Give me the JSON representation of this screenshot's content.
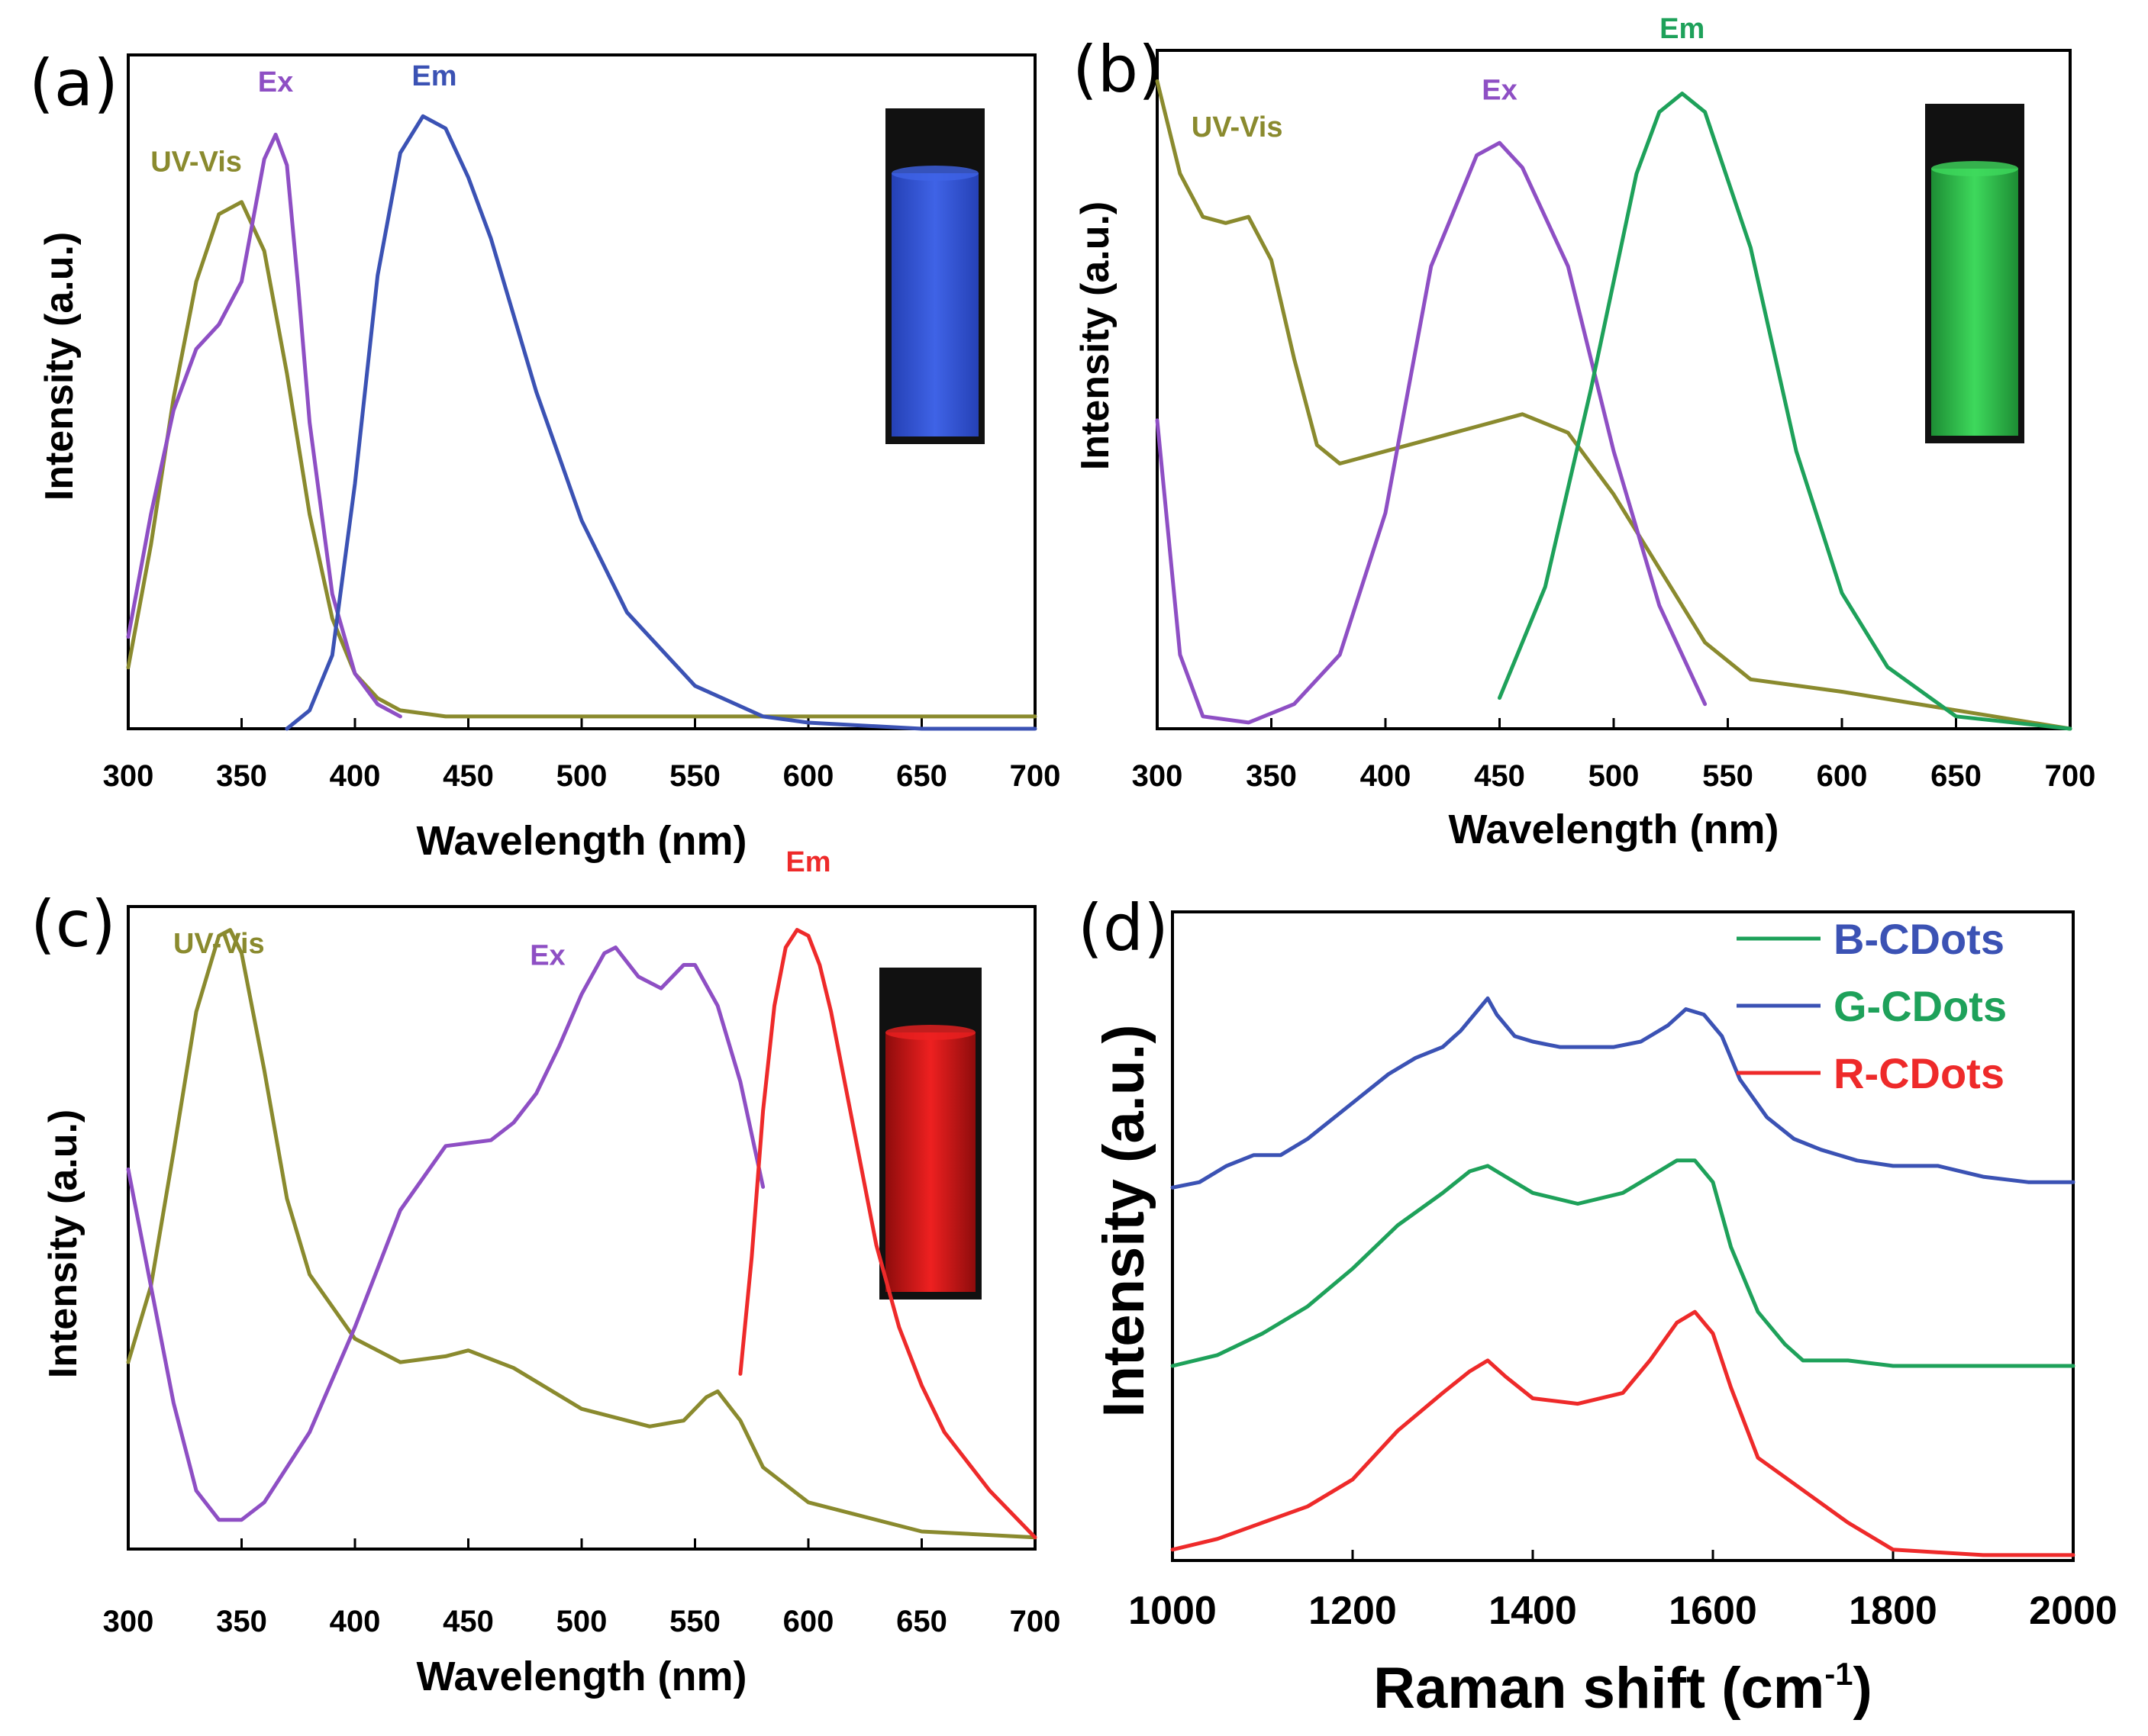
{
  "chart_data": [
    {
      "panel": "(a)",
      "type": "line",
      "xlabel": "Wavelength (nm)",
      "ylabel": "Intensity (a.u.)",
      "xlim": [
        300,
        700
      ],
      "ylim": [
        0,
        1.1
      ],
      "xticks": [
        300,
        350,
        400,
        450,
        500,
        550,
        600,
        650,
        700
      ],
      "inset": "blue-glowing-vial",
      "series": [
        {
          "name": "UV-Vis",
          "color": "#8a8a2e",
          "label_at": [
            330,
            0.91
          ],
          "x": [
            300,
            310,
            320,
            330,
            340,
            350,
            360,
            370,
            380,
            390,
            400,
            410,
            420,
            440,
            500,
            600,
            700
          ],
          "y": [
            0.1,
            0.3,
            0.54,
            0.73,
            0.84,
            0.86,
            0.78,
            0.58,
            0.35,
            0.18,
            0.09,
            0.05,
            0.03,
            0.02,
            0.02,
            0.02,
            0.02
          ]
        },
        {
          "name": "Ex",
          "color": "#8e4fc4",
          "label_at": [
            365,
            1.04
          ],
          "x": [
            300,
            310,
            320,
            330,
            340,
            350,
            355,
            360,
            365,
            370,
            375,
            380,
            390,
            400,
            410,
            420
          ],
          "y": [
            0.15,
            0.35,
            0.52,
            0.62,
            0.66,
            0.73,
            0.83,
            0.93,
            0.97,
            0.92,
            0.72,
            0.5,
            0.22,
            0.09,
            0.04,
            0.02
          ]
        },
        {
          "name": "Em",
          "color": "#3b52b4",
          "label_at": [
            435,
            1.05
          ],
          "x": [
            370,
            380,
            390,
            400,
            410,
            420,
            430,
            440,
            450,
            460,
            480,
            500,
            520,
            550,
            580,
            600,
            650,
            700
          ],
          "y": [
            0.0,
            0.03,
            0.12,
            0.4,
            0.74,
            0.94,
            1.0,
            0.98,
            0.9,
            0.8,
            0.55,
            0.34,
            0.19,
            0.07,
            0.02,
            0.01,
            0.0,
            0.0
          ]
        }
      ]
    },
    {
      "panel": "(b)",
      "type": "line",
      "xlabel": "Wavelength (nm)",
      "ylabel": "Intensity (a.u.)",
      "xlim": [
        300,
        700
      ],
      "ylim": [
        0,
        1.1
      ],
      "xticks": [
        300,
        350,
        400,
        450,
        500,
        550,
        600,
        650,
        700
      ],
      "inset": "green-glowing-vial",
      "series": [
        {
          "name": "UV-Vis",
          "color": "#8a8a2e",
          "label_at": [
            335,
            0.96
          ],
          "x": [
            300,
            310,
            320,
            330,
            340,
            350,
            360,
            370,
            380,
            390,
            400,
            420,
            440,
            460,
            480,
            500,
            520,
            540,
            560,
            600,
            650,
            700
          ],
          "y": [
            1.05,
            0.9,
            0.83,
            0.82,
            0.83,
            0.76,
            0.6,
            0.46,
            0.43,
            0.44,
            0.45,
            0.47,
            0.49,
            0.51,
            0.48,
            0.38,
            0.26,
            0.14,
            0.08,
            0.06,
            0.03,
            0.0
          ]
        },
        {
          "name": "Ex",
          "color": "#8e4fc4",
          "label_at": [
            450,
            1.02
          ],
          "x": [
            300,
            310,
            320,
            340,
            360,
            380,
            400,
            420,
            440,
            450,
            460,
            480,
            500,
            520,
            540
          ],
          "y": [
            0.5,
            0.12,
            0.02,
            0.01,
            0.04,
            0.12,
            0.35,
            0.75,
            0.93,
            0.95,
            0.91,
            0.75,
            0.45,
            0.2,
            0.04
          ]
        },
        {
          "name": "Em",
          "color": "#1ea15a",
          "label_at": [
            530,
            1.12
          ],
          "x": [
            450,
            470,
            490,
            510,
            520,
            530,
            540,
            560,
            580,
            600,
            620,
            650,
            700
          ],
          "y": [
            0.05,
            0.23,
            0.55,
            0.9,
            1.0,
            1.03,
            1.0,
            0.78,
            0.45,
            0.22,
            0.1,
            0.02,
            0.0
          ]
        }
      ]
    },
    {
      "panel": "(c)",
      "type": "line",
      "xlabel": "Wavelength (nm)",
      "ylabel": "Intensity (a.u.)",
      "xlim": [
        300,
        700
      ],
      "ylim": [
        0,
        1.1
      ],
      "xticks": [
        300,
        350,
        400,
        450,
        500,
        550,
        600,
        650,
        700
      ],
      "inset": "red-glowing-vial",
      "series": [
        {
          "name": "UV-Vis",
          "color": "#8a8a2e",
          "label_at": [
            340,
            1.02
          ],
          "x": [
            300,
            310,
            320,
            330,
            340,
            345,
            350,
            360,
            370,
            380,
            400,
            420,
            440,
            450,
            470,
            500,
            530,
            545,
            555,
            560,
            570,
            580,
            600,
            650,
            700
          ],
          "y": [
            0.32,
            0.45,
            0.68,
            0.92,
            1.05,
            1.06,
            1.02,
            0.82,
            0.6,
            0.47,
            0.36,
            0.32,
            0.33,
            0.34,
            0.31,
            0.24,
            0.21,
            0.22,
            0.26,
            0.27,
            0.22,
            0.14,
            0.08,
            0.03,
            0.02
          ]
        },
        {
          "name": "Ex",
          "color": "#8e4fc4",
          "label_at": [
            485,
            1.0
          ],
          "x": [
            300,
            310,
            320,
            330,
            340,
            350,
            360,
            380,
            400,
            420,
            440,
            460,
            470,
            480,
            490,
            500,
            510,
            515,
            525,
            535,
            545,
            550,
            560,
            570,
            580
          ],
          "y": [
            0.65,
            0.45,
            0.25,
            0.1,
            0.05,
            0.05,
            0.08,
            0.2,
            0.38,
            0.58,
            0.69,
            0.7,
            0.73,
            0.78,
            0.86,
            0.95,
            1.02,
            1.03,
            0.98,
            0.96,
            1.0,
            1.0,
            0.93,
            0.8,
            0.62
          ]
        },
        {
          "name": "Em",
          "color": "#ee2a2a",
          "label_at": [
            600,
            1.16
          ],
          "x": [
            570,
            575,
            580,
            585,
            590,
            595,
            600,
            605,
            610,
            620,
            630,
            640,
            650,
            660,
            680,
            700
          ],
          "y": [
            0.3,
            0.5,
            0.75,
            0.93,
            1.03,
            1.06,
            1.05,
            1.0,
            0.92,
            0.72,
            0.52,
            0.38,
            0.28,
            0.2,
            0.1,
            0.02
          ]
        }
      ]
    },
    {
      "panel": "(d)",
      "type": "line",
      "xlabel": "Raman shift (cm",
      "xlabel_sup": "-1",
      "xlabel_close": ")",
      "ylabel": "Intensity (a.u.)",
      "xlim": [
        1000,
        2000
      ],
      "ylim": [
        0,
        1.2
      ],
      "xticks": [
        1000,
        1200,
        1400,
        1600,
        1800,
        2000
      ],
      "legend_position": "top-right",
      "legend": [
        {
          "label": "B-CDots",
          "line_color": "#1ea15a",
          "text_color": "#3b52b4"
        },
        {
          "label": "G-CDots",
          "line_color": "#3b52b4",
          "text_color": "#1ea15a"
        },
        {
          "label": "R-CDots",
          "line_color": "#ee2a2a",
          "text_color": "#ee2a2a"
        }
      ],
      "series": [
        {
          "name": "blue-trace",
          "color": "#3b52b4",
          "x": [
            1000,
            1030,
            1060,
            1090,
            1120,
            1150,
            1180,
            1210,
            1240,
            1270,
            1300,
            1320,
            1340,
            1350,
            1360,
            1380,
            1400,
            1430,
            1460,
            1490,
            1520,
            1550,
            1570,
            1590,
            1610,
            1630,
            1660,
            1690,
            1720,
            1760,
            1800,
            1850,
            1900,
            1950,
            2000
          ],
          "y": [
            0.69,
            0.7,
            0.73,
            0.75,
            0.75,
            0.78,
            0.82,
            0.86,
            0.9,
            0.93,
            0.95,
            0.98,
            1.02,
            1.04,
            1.01,
            0.97,
            0.96,
            0.95,
            0.95,
            0.95,
            0.96,
            0.99,
            1.02,
            1.01,
            0.97,
            0.89,
            0.82,
            0.78,
            0.76,
            0.74,
            0.73,
            0.73,
            0.71,
            0.7,
            0.7
          ]
        },
        {
          "name": "green-trace",
          "color": "#1ea15a",
          "x": [
            1000,
            1050,
            1100,
            1150,
            1200,
            1250,
            1300,
            1330,
            1350,
            1370,
            1400,
            1450,
            1500,
            1530,
            1560,
            1580,
            1600,
            1620,
            1650,
            1680,
            1700,
            1750,
            1800,
            1900,
            2000
          ],
          "y": [
            0.36,
            0.38,
            0.42,
            0.47,
            0.54,
            0.62,
            0.68,
            0.72,
            0.73,
            0.71,
            0.68,
            0.66,
            0.68,
            0.71,
            0.74,
            0.74,
            0.7,
            0.58,
            0.46,
            0.4,
            0.37,
            0.37,
            0.36,
            0.36,
            0.36
          ]
        },
        {
          "name": "red-trace",
          "color": "#ee2a2a",
          "x": [
            1000,
            1050,
            1100,
            1150,
            1200,
            1250,
            1300,
            1330,
            1350,
            1370,
            1400,
            1450,
            1500,
            1530,
            1560,
            1580,
            1600,
            1620,
            1650,
            1700,
            1750,
            1800,
            1900,
            2000
          ],
          "y": [
            0.02,
            0.04,
            0.07,
            0.1,
            0.15,
            0.24,
            0.31,
            0.35,
            0.37,
            0.34,
            0.3,
            0.29,
            0.31,
            0.37,
            0.44,
            0.46,
            0.42,
            0.32,
            0.19,
            0.13,
            0.07,
            0.02,
            0.01,
            0.01
          ]
        }
      ]
    }
  ]
}
